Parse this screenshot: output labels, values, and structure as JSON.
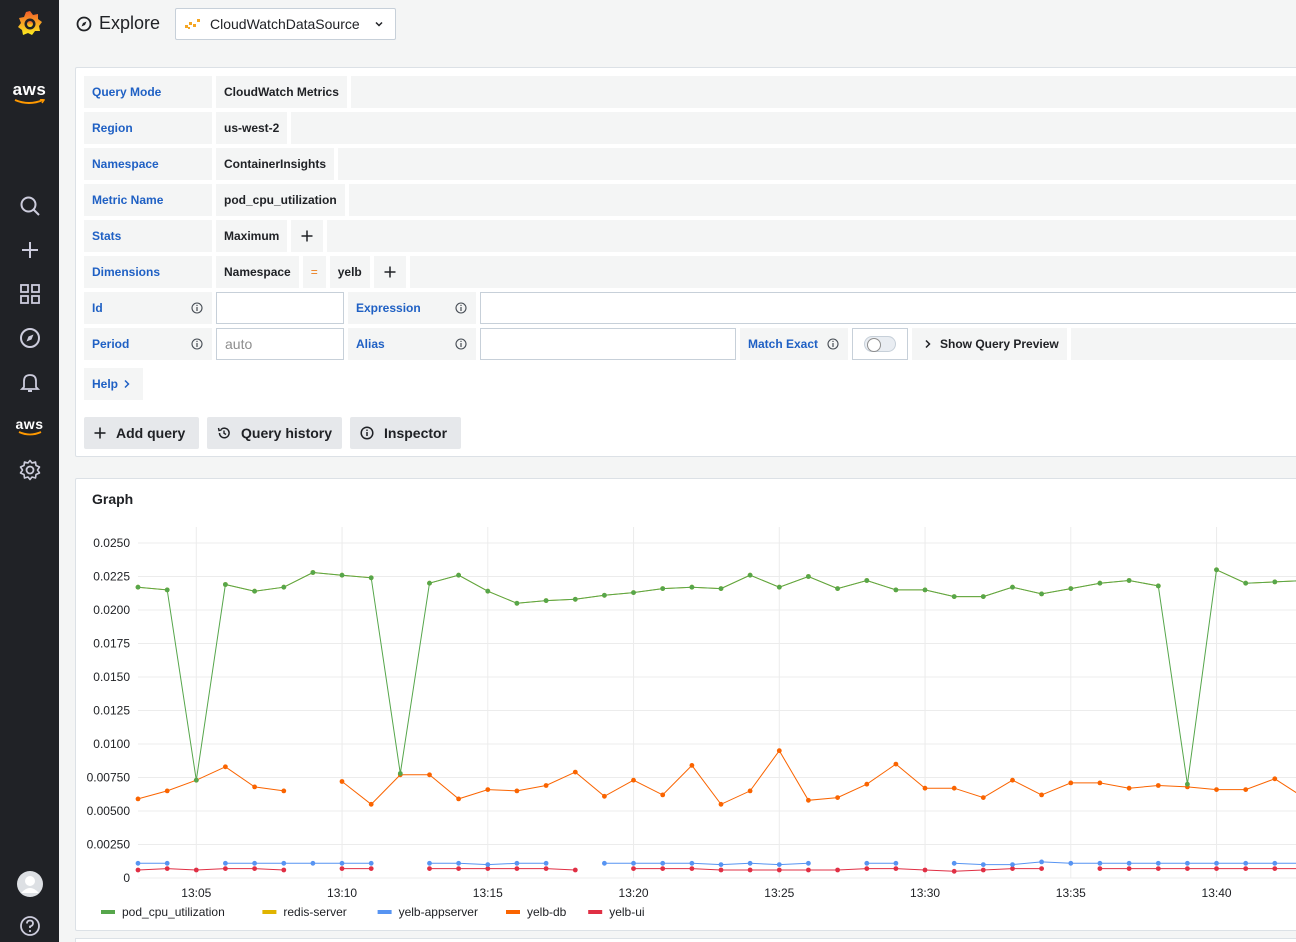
{
  "header": {
    "title": "Explore",
    "datasource": "CloudWatchDataSource"
  },
  "sidebar": {
    "aws_top": "aws",
    "aws_mid": "aws",
    "icons": [
      "grafana-logo-icon",
      "search-icon",
      "plus-icon",
      "dashboards-icon",
      "explore-icon",
      "bell-icon",
      "aws-icon",
      "gear-icon",
      "avatar",
      "help-icon"
    ]
  },
  "query": {
    "query_mode_label": "Query Mode",
    "query_mode_value": "CloudWatch Metrics",
    "region_label": "Region",
    "region_value": "us-west-2",
    "namespace_label": "Namespace",
    "namespace_value": "ContainerInsights",
    "metric_label": "Metric Name",
    "metric_value": "pod_cpu_utilization",
    "stats_label": "Stats",
    "stats_value": "Maximum",
    "dimensions_label": "Dimensions",
    "dim_key": "Namespace",
    "dim_op": "=",
    "dim_value": "yelb",
    "plus": "+",
    "id_label": "Id",
    "id_value": "",
    "expression_label": "Expression",
    "expression_value": "",
    "period_label": "Period",
    "period_placeholder": "auto",
    "alias_label": "Alias",
    "alias_value": "",
    "match_exact_label": "Match Exact",
    "show_preview_label": "Show Query Preview",
    "help_label": "Help"
  },
  "actions": {
    "add_query": "Add query",
    "query_history": "Query history",
    "inspector": "Inspector"
  },
  "graph": {
    "title": "Graph"
  },
  "colors": {
    "pod_cpu_utilization": "#56a64b",
    "redis-server": "#e0b400",
    "yelb-appserver": "#5794f2",
    "yelb-db": "#fa6400",
    "yelb-ui": "#e02f44"
  },
  "chart_data": {
    "type": "line",
    "title": "Graph",
    "ylim": [
      0,
      0.025
    ],
    "y_ticks": [
      "0",
      "0.00250",
      "0.00500",
      "0.00750",
      "0.0100",
      "0.0125",
      "0.0150",
      "0.0175",
      "0.0200",
      "0.0225",
      "0.0250"
    ],
    "x_ticks": [
      "13:05",
      "13:10",
      "13:15",
      "13:20",
      "13:25",
      "13:30",
      "13:35",
      "13:40"
    ],
    "x_start": "13:03",
    "x_step_minutes": 1,
    "grid": true,
    "legend_placement": "bottom-left",
    "series": [
      {
        "name": "pod_cpu_utilization",
        "color": "#56a64b",
        "values": [
          0.0217,
          0.0215,
          0.0073,
          0.0219,
          0.0214,
          0.0217,
          0.0228,
          0.0226,
          0.0224,
          0.0078,
          0.022,
          0.0226,
          0.0214,
          0.0205,
          0.0207,
          0.0208,
          0.0211,
          0.0213,
          0.0216,
          0.0217,
          0.0216,
          0.0226,
          0.0217,
          0.0225,
          0.0216,
          0.0222,
          0.0215,
          0.0215,
          0.021,
          0.021,
          0.0217,
          0.0212,
          0.0216,
          0.022,
          0.0222,
          0.0218,
          0.007,
          0.023,
          0.022,
          0.0221,
          0.0222
        ]
      },
      {
        "name": "redis-server",
        "color": "#e0b400",
        "values": [
          0.0217,
          0.0215,
          null,
          0.0219,
          0.0214,
          0.0217,
          0.0228,
          0.0226,
          0.0224,
          null,
          0.022,
          0.0226,
          0.0214,
          0.0205,
          0.0207,
          0.0208,
          0.0211,
          0.0213,
          0.0216,
          0.0217,
          0.0216,
          0.0226,
          0.0217,
          0.0225,
          0.0216,
          0.0222,
          0.0215,
          0.0215,
          0.021,
          0.021,
          0.0217,
          0.0212,
          0.0216,
          0.022,
          0.0222,
          0.0218,
          null,
          0.023,
          0.022,
          0.0221,
          0.0222
        ]
      },
      {
        "name": "yelb-appserver",
        "color": "#5794f2",
        "values": [
          0.0011,
          0.0011,
          null,
          0.0011,
          0.0011,
          0.0011,
          0.0011,
          0.0011,
          0.0011,
          null,
          0.0011,
          0.0011,
          0.001,
          0.0011,
          0.0011,
          null,
          0.0011,
          0.0011,
          0.0011,
          0.0011,
          0.001,
          0.0011,
          0.001,
          0.0011,
          null,
          0.0011,
          0.0011,
          null,
          0.0011,
          0.001,
          0.001,
          0.0012,
          0.0011,
          0.0011,
          0.0011,
          0.0011,
          0.0011,
          0.0011,
          0.0011,
          0.0011,
          0.0011
        ]
      },
      {
        "name": "yelb-db",
        "color": "#fa6400",
        "values": [
          0.0059,
          0.0065,
          0.0073,
          0.0083,
          0.0068,
          0.0065,
          null,
          0.0072,
          0.0055,
          0.0077,
          0.0077,
          0.0059,
          0.0066,
          0.0065,
          0.0069,
          0.0079,
          0.0061,
          0.0073,
          0.0062,
          0.0084,
          0.0055,
          0.0065,
          0.0095,
          0.0058,
          0.006,
          0.007,
          0.0085,
          0.0067,
          0.0067,
          0.006,
          0.0073,
          0.0062,
          0.0071,
          0.0071,
          0.0067,
          0.0069,
          0.0068,
          0.0066,
          0.0066,
          0.0074,
          0.006
        ]
      },
      {
        "name": "yelb-ui",
        "color": "#e02f44",
        "values": [
          0.0006,
          0.0007,
          0.0006,
          0.0007,
          0.0007,
          0.0006,
          null,
          0.0007,
          0.0007,
          null,
          0.0007,
          0.0007,
          0.0007,
          0.0007,
          0.0007,
          0.0006,
          null,
          0.0007,
          0.0007,
          0.0007,
          0.0006,
          0.0006,
          0.0006,
          0.0006,
          0.0006,
          0.0007,
          0.0007,
          0.0006,
          0.0005,
          0.0006,
          0.0007,
          0.0007,
          null,
          0.0007,
          0.0007,
          0.0007,
          0.0007,
          0.0007,
          0.0007,
          0.0007,
          0.0007
        ]
      }
    ]
  }
}
